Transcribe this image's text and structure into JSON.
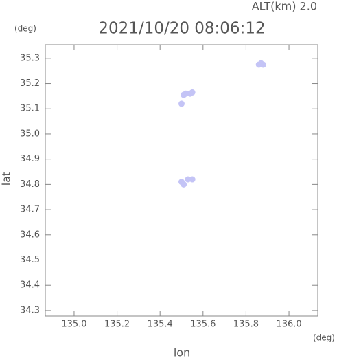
{
  "chart_data": {
    "type": "scatter",
    "title": "2021/10/20 08:06:12",
    "subtitle": "ALT(km) 2.0",
    "x_label": "lon",
    "y_label": "lat",
    "x_unit": "(deg)",
    "y_unit": "(deg)",
    "x": [
      135.87,
      135.86,
      135.88,
      135.52,
      135.54,
      135.55,
      135.51,
      135.5,
      135.5,
      135.51,
      135.53,
      135.55
    ],
    "y": [
      35.28,
      35.275,
      35.275,
      35.16,
      35.16,
      35.165,
      35.155,
      35.12,
      34.81,
      34.8,
      34.82,
      34.82
    ],
    "color": "#c4c4f6",
    "xlim": [
      134.866,
      136.134
    ],
    "ylim": [
      34.278,
      35.354
    ],
    "xticks": [
      {
        "value": 135,
        "label": "135.0"
      },
      135.2,
      135.4,
      135.6,
      135.8,
      {
        "value": 136,
        "label": "136.0"
      }
    ],
    "yticks": [
      35.3,
      35.2,
      35.1,
      {
        "value": 35,
        "label": "35.0"
      },
      34.9,
      34.8,
      34.7,
      34.6,
      34.5,
      34.4,
      34.3
    ]
  }
}
